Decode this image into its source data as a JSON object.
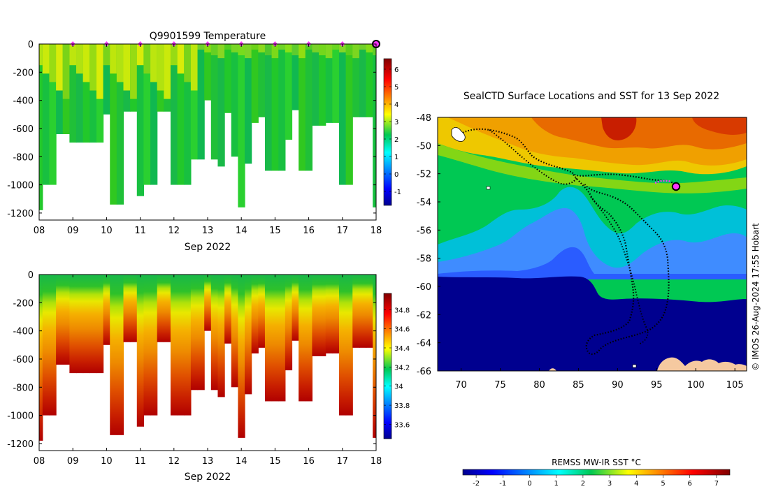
{
  "chart_data": [
    {
      "id": "temp",
      "type": "heatmap",
      "title": "Q9901599  Temperature",
      "xlabel": "Sep 2022",
      "ylabel": "",
      "xlim": [
        8,
        18
      ],
      "ylim": [
        -1250,
        0
      ],
      "x_ticks": [
        "08",
        "09",
        "10",
        "11",
        "12",
        "13",
        "14",
        "15",
        "16",
        "17",
        "18"
      ],
      "y_ticks": [
        0,
        -200,
        -400,
        -600,
        -800,
        -1000,
        -1200
      ],
      "colorbar": {
        "min": -1.8,
        "max": 6.6,
        "ticks": [
          -1,
          0,
          1,
          2,
          3,
          4,
          5,
          6
        ]
      },
      "surface_markers_days": [
        9,
        10,
        11,
        12,
        13,
        14,
        15,
        16,
        17
      ],
      "current_marker_day": 18,
      "profile_days": [
        8.0,
        8.2,
        8.4,
        8.6,
        8.8,
        9.0,
        9.2,
        9.4,
        9.6,
        9.8,
        10.0,
        10.2,
        10.4,
        10.6,
        10.8,
        11.0,
        11.2,
        11.4,
        11.6,
        11.8,
        12.0,
        12.2,
        12.4,
        12.6,
        12.8,
        13.0,
        13.2,
        13.4,
        13.6,
        13.8,
        14.0,
        14.2,
        14.4,
        14.6,
        14.8,
        15.0,
        15.2,
        15.4,
        15.6,
        15.8,
        16.0,
        16.2,
        16.4,
        16.6,
        16.8,
        17.0,
        17.2,
        17.4,
        17.6,
        17.8,
        18.0
      ],
      "profile_max_depth_m": [
        1180,
        1000,
        1000,
        640,
        640,
        700,
        700,
        700,
        700,
        700,
        500,
        1140,
        1140,
        480,
        480,
        1080,
        1000,
        1000,
        480,
        480,
        1000,
        1000,
        1000,
        820,
        820,
        400,
        820,
        870,
        490,
        800,
        1160,
        850,
        560,
        520,
        900,
        900,
        900,
        680,
        470,
        900,
        900,
        580,
        580,
        560,
        560,
        1000,
        1000,
        520,
        520,
        520,
        1160
      ]
    },
    {
      "id": "salinity",
      "type": "heatmap",
      "title": "",
      "xlabel": "Sep 2022",
      "ylabel": "",
      "xlim": [
        8,
        18
      ],
      "ylim": [
        -1250,
        0
      ],
      "x_ticks": [
        "08",
        "09",
        "10",
        "11",
        "12",
        "13",
        "14",
        "15",
        "16",
        "17",
        "18"
      ],
      "y_ticks": [
        0,
        -200,
        -400,
        -600,
        -800,
        -1000,
        -1200
      ],
      "colorbar": {
        "min": 33.45,
        "max": 34.97,
        "ticks": [
          33.6,
          33.8,
          34,
          34.2,
          34.4,
          34.6,
          34.8
        ]
      }
    },
    {
      "id": "map",
      "type": "map",
      "title": "SealCTD Surface Locations and SST for 13 Sep 2022",
      "xlim": [
        67,
        106.5
      ],
      "ylim": [
        -66,
        -48
      ],
      "x_ticks": [
        70,
        75,
        80,
        85,
        90,
        95,
        100,
        105
      ],
      "y_ticks": [
        -48,
        -50,
        -52,
        -54,
        -56,
        -58,
        -60,
        -62,
        -64,
        -66
      ],
      "current_position": {
        "lon": 98,
        "lat": -53
      },
      "colorbar": {
        "title": "REMSS MW-IR SST °C",
        "min": -2.5,
        "max": 7.5,
        "ticks": [
          "-2",
          "-1",
          "0",
          "1",
          "2",
          "3",
          "4",
          "5",
          "6",
          "7"
        ]
      },
      "credit": "© IMOS 26-Aug-2024 17:55 Hobart"
    }
  ],
  "colors": {
    "surface_marker": "#ff33ff",
    "track": "#000000",
    "ice": "#00008f",
    "land": "#f5c9a0"
  }
}
